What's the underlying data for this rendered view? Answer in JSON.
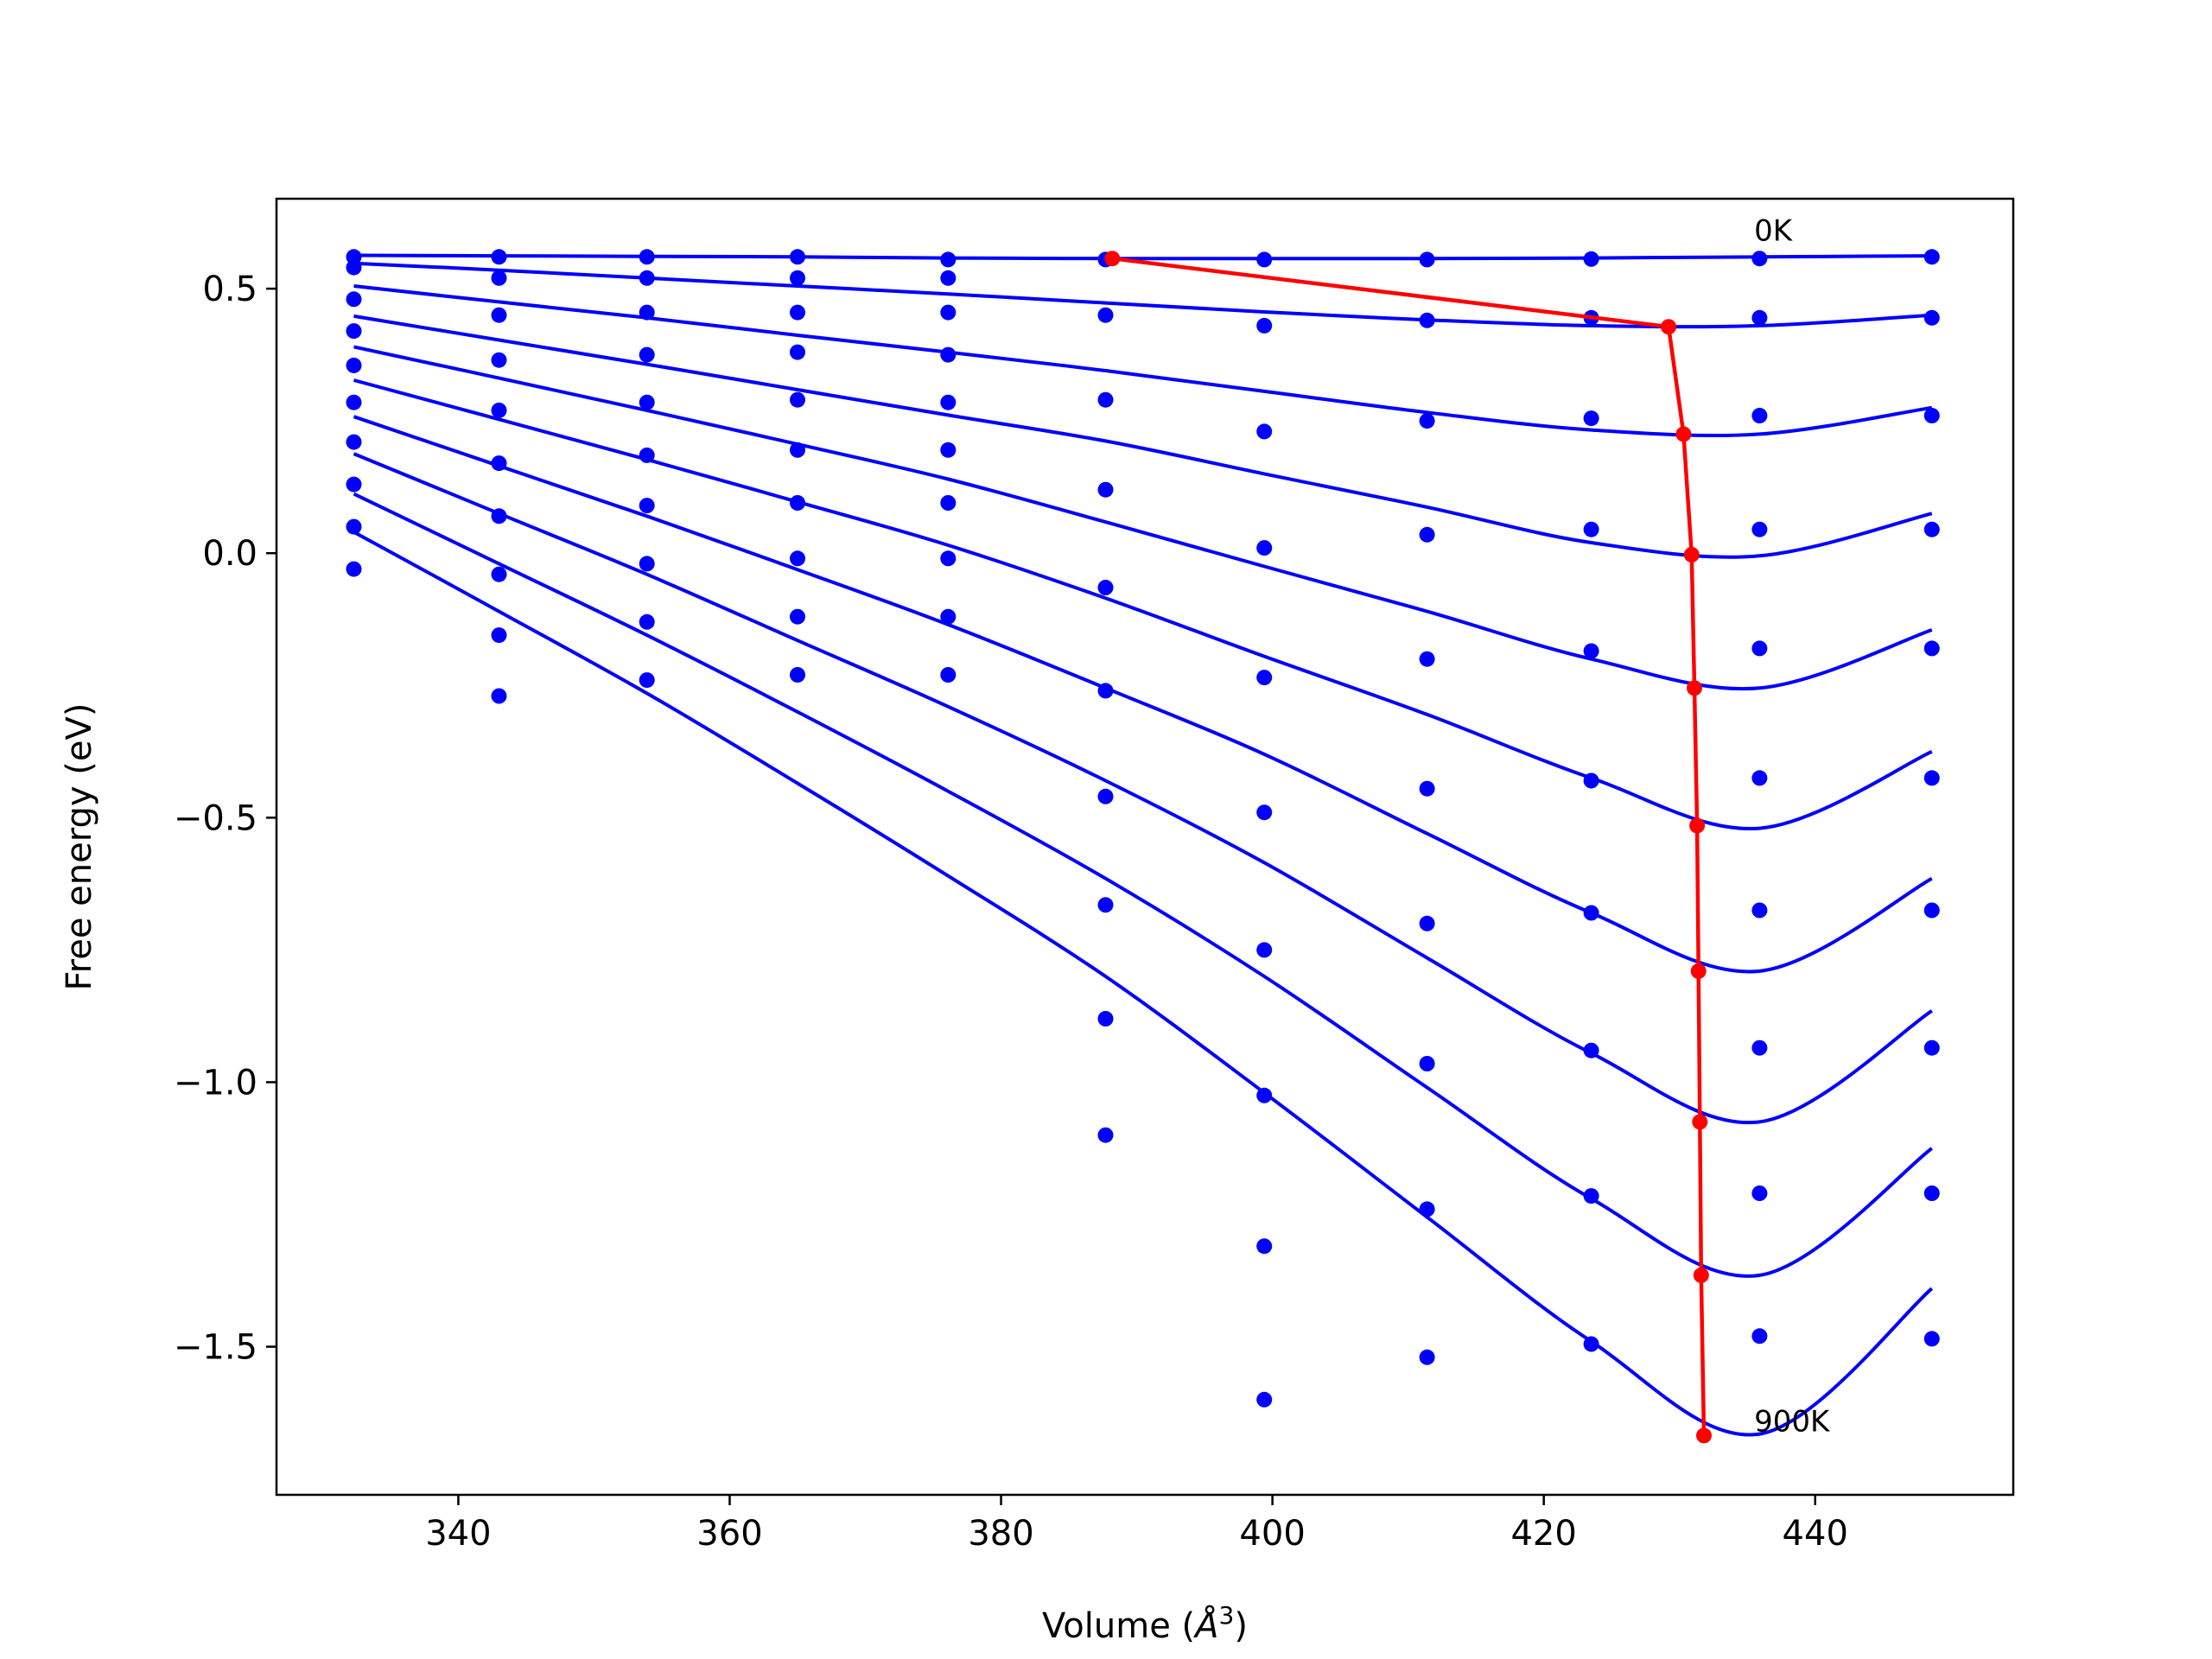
{
  "chart_data": {
    "type": "scatter",
    "title": "",
    "xlabel": "Volume (",
    "xlabel_unit": "Å",
    "xlabel_exp": "3",
    "xlabel_close": ")",
    "ylabel": "Free energy (eV)",
    "xlim": [
      326.6,
      454.6
    ],
    "ylim": [
      -1.78,
      0.67
    ],
    "x_ticks": [
      340,
      360,
      380,
      400,
      420,
      440
    ],
    "x_tick_labels": [
      "340",
      "360",
      "380",
      "400",
      "420",
      "440"
    ],
    "y_ticks": [
      0.5,
      0.0,
      -0.5,
      -1.0,
      -1.5
    ],
    "y_tick_labels": [
      "0.5",
      "0.0",
      "−0.5",
      "−1.0",
      "−1.5"
    ],
    "grid": false,
    "annotations": [
      {
        "text": "0K",
        "x": 435.5,
        "y": 0.61
      },
      {
        "text": "900K",
        "x": 435.5,
        "y": -1.64
      }
    ],
    "volumes": [
      332.3,
      343.0,
      353.9,
      365.0,
      376.1,
      387.7,
      399.4,
      411.4,
      423.5,
      435.9,
      448.6
    ],
    "series": [
      {
        "values": [
          0.56,
          0.56,
          0.56,
          0.56,
          0.555,
          0.555,
          0.555,
          0.555,
          0.556,
          0.557,
          0.56
        ],
        "fit": [
          0.563,
          0.562,
          0.561,
          0.56,
          0.558,
          0.557,
          0.557,
          0.557,
          0.558,
          0.56,
          0.562
        ]
      },
      {
        "values": [
          0.54,
          0.52,
          0.52,
          0.52,
          0.52,
          0.45,
          0.43,
          0.44,
          0.445,
          0.445,
          0.445
        ],
        "fit": [
          0.548,
          0.535,
          0.52,
          0.505,
          0.49,
          0.473,
          0.456,
          0.441,
          0.43,
          0.43,
          0.45
        ]
      },
      {
        "values": [
          0.48,
          0.45,
          0.455,
          0.455,
          0.455,
          0.29,
          0.23,
          0.25,
          0.255,
          0.26,
          0.26
        ],
        "fit": [
          0.505,
          0.475,
          0.445,
          0.412,
          0.38,
          0.345,
          0.306,
          0.266,
          0.233,
          0.225,
          0.275
        ]
      },
      {
        "values": [
          0.42,
          0.365,
          0.375,
          0.38,
          0.375,
          0.12,
          0.01,
          0.035,
          0.045,
          0.045,
          0.045
        ],
        "fit": [
          0.448,
          0.403,
          0.357,
          0.309,
          0.261,
          0.212,
          0.15,
          0.087,
          0.02,
          -0.005,
          0.075
        ]
      },
      {
        "values": [
          0.355,
          0.27,
          0.285,
          0.29,
          0.285,
          -0.065,
          -0.235,
          -0.2,
          -0.185,
          -0.18,
          -0.18
        ],
        "fit": [
          0.39,
          0.331,
          0.27,
          0.206,
          0.14,
          0.059,
          -0.025,
          -0.11,
          -0.2,
          -0.255,
          -0.145
        ]
      },
      {
        "values": [
          0.285,
          0.17,
          0.185,
          0.195,
          0.195,
          -0.26,
          -0.49,
          -0.445,
          -0.43,
          -0.425,
          -0.425
        ],
        "fit": [
          0.327,
          0.253,
          0.177,
          0.097,
          0.015,
          -0.085,
          -0.195,
          -0.305,
          -0.425,
          -0.52,
          -0.375
        ]
      },
      {
        "values": [
          0.21,
          0.07,
          0.09,
          0.095,
          0.095,
          -0.46,
          -0.75,
          -0.7,
          -0.68,
          -0.675,
          -0.675
        ],
        "fit": [
          0.258,
          0.165,
          0.07,
          -0.031,
          -0.135,
          -0.255,
          -0.38,
          -0.53,
          -0.68,
          -0.79,
          -0.615
        ]
      },
      {
        "values": [
          0.13,
          -0.04,
          -0.02,
          -0.01,
          -0.01,
          -0.665,
          -1.025,
          -0.965,
          -0.94,
          -0.935,
          -0.935
        ],
        "fit": [
          0.188,
          0.075,
          -0.04,
          -0.165,
          -0.29,
          -0.43,
          -0.585,
          -0.765,
          -0.945,
          -1.075,
          -0.865
        ]
      },
      {
        "values": [
          0.05,
          -0.155,
          -0.13,
          -0.12,
          -0.12,
          -0.88,
          -1.31,
          -1.24,
          -1.215,
          -1.21,
          -1.21
        ],
        "fit": [
          0.112,
          -0.02,
          -0.155,
          -0.3,
          -0.45,
          -0.615,
          -0.8,
          -1.01,
          -1.22,
          -1.365,
          -1.125
        ]
      },
      {
        "values": [
          -0.03,
          -0.27,
          -0.24,
          -0.23,
          -0.23,
          -1.1,
          -1.6,
          -1.52,
          -1.495,
          -1.48,
          -1.485
        ],
        "fit": [
          0.04,
          -0.11,
          -0.265,
          -0.435,
          -0.61,
          -0.8,
          -1.02,
          -1.255,
          -1.49,
          -1.665,
          -1.39
        ]
      }
    ],
    "equilibrium": {
      "x": [
        388.2,
        429.2,
        430.3,
        430.9,
        431.1,
        431.3,
        431.4,
        431.5,
        431.6,
        431.8
      ],
      "y": [
        0.557,
        0.428,
        0.225,
        -0.003,
        -0.255,
        -0.515,
        -0.79,
        -1.075,
        -1.365,
        -1.668
      ]
    },
    "colors": {
      "series": "#0000ff",
      "equilibrium": "#ff0000",
      "axes": "#000000"
    }
  }
}
